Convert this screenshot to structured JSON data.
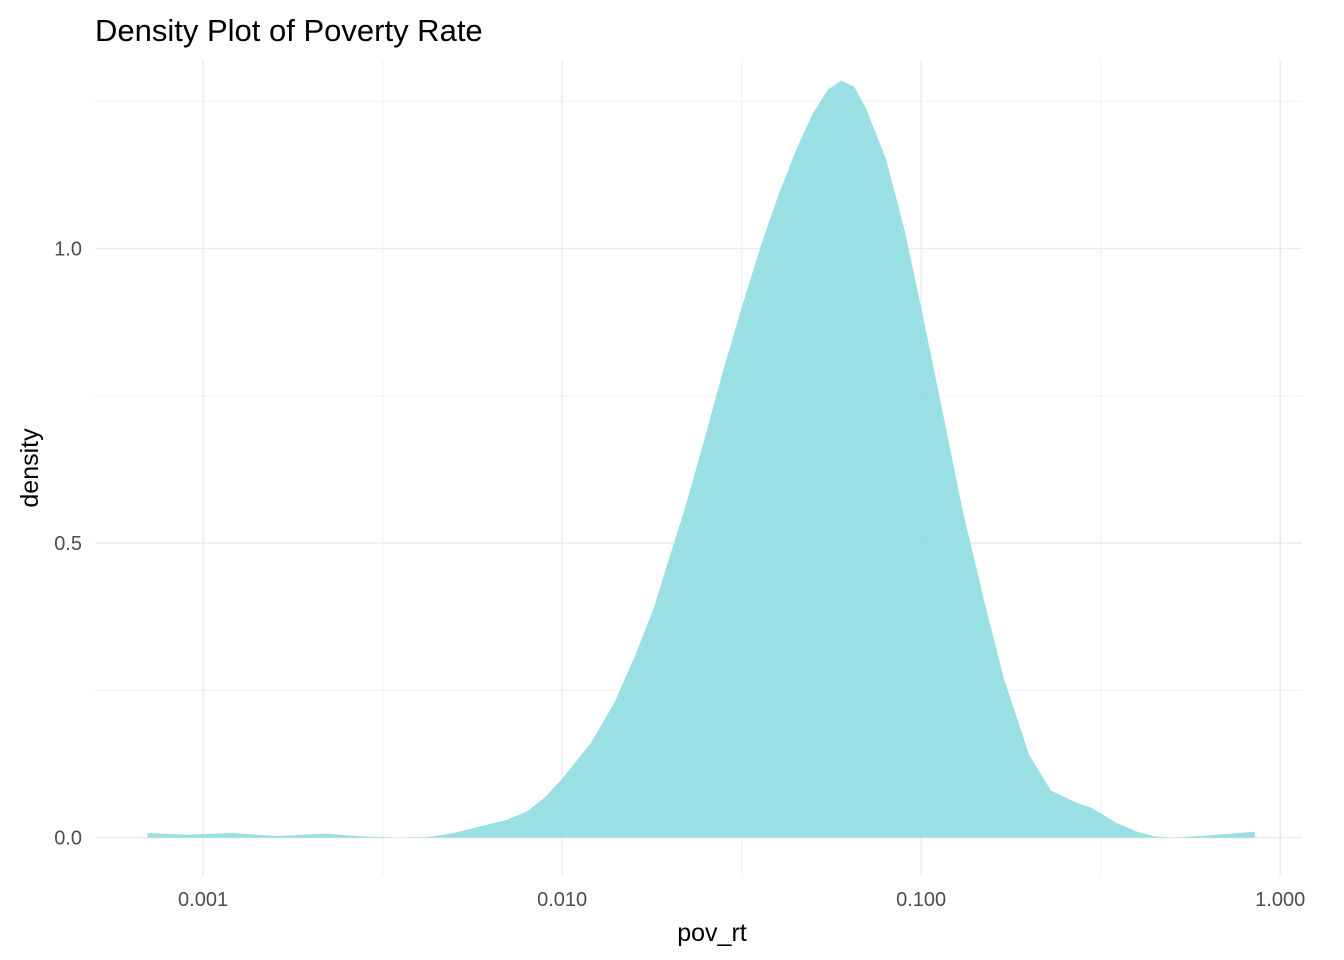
{
  "chart_data": {
    "type": "area",
    "title": "Density Plot of Poverty Rate",
    "xlabel": "pov_rt",
    "ylabel": "density",
    "x_scale": "log10",
    "xlim": [
      0.0005,
      1.15
    ],
    "ylim": [
      -0.065,
      1.32
    ],
    "x_ticks": [
      0.001,
      0.01,
      0.1,
      1.0
    ],
    "x_tick_labels": [
      "0.001",
      "0.010",
      "0.100",
      "1.000"
    ],
    "y_ticks": [
      0.0,
      0.5,
      1.0
    ],
    "y_tick_labels": [
      "0.0",
      "0.5",
      "1.0"
    ],
    "fill_color": "#8fdbe0",
    "grid": true,
    "series": [
      {
        "name": "density",
        "x": [
          0.0007,
          0.0009,
          0.0012,
          0.0016,
          0.0022,
          0.0028,
          0.0035,
          0.0042,
          0.005,
          0.006,
          0.007,
          0.008,
          0.009,
          0.01,
          0.012,
          0.014,
          0.016,
          0.018,
          0.02,
          0.022,
          0.025,
          0.028,
          0.032,
          0.036,
          0.04,
          0.045,
          0.05,
          0.055,
          0.06,
          0.065,
          0.07,
          0.08,
          0.09,
          0.1,
          0.115,
          0.13,
          0.15,
          0.17,
          0.2,
          0.23,
          0.27,
          0.3,
          0.35,
          0.4,
          0.45,
          0.5,
          0.6,
          0.7,
          0.85
        ],
        "y": [
          0.008,
          0.005,
          0.008,
          0.003,
          0.007,
          0.002,
          0.0,
          0.001,
          0.008,
          0.02,
          0.03,
          0.045,
          0.07,
          0.1,
          0.16,
          0.23,
          0.31,
          0.39,
          0.48,
          0.56,
          0.68,
          0.79,
          0.91,
          1.01,
          1.09,
          1.17,
          1.23,
          1.27,
          1.285,
          1.275,
          1.24,
          1.15,
          1.03,
          0.9,
          0.72,
          0.56,
          0.4,
          0.27,
          0.14,
          0.08,
          0.06,
          0.05,
          0.025,
          0.01,
          0.002,
          0.0,
          0.003,
          0.006,
          0.01
        ]
      }
    ]
  }
}
